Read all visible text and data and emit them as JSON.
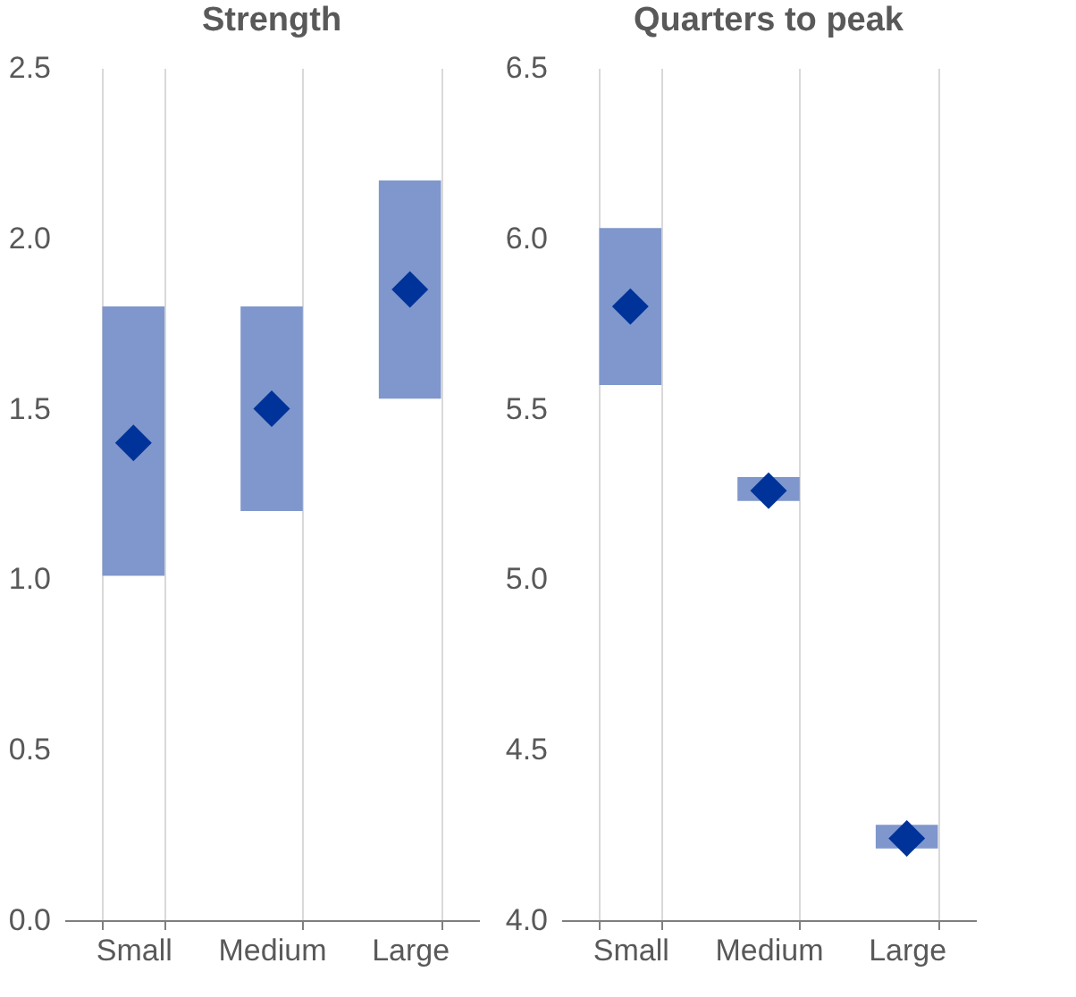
{
  "chart_data": [
    {
      "type": "bar",
      "title": "Strength",
      "categories": [
        "Small",
        "Medium",
        "Large"
      ],
      "marker": "diamond",
      "grid": "x",
      "ylim": [
        0,
        2.5
      ],
      "yticks": [
        {
          "value": 0,
          "label": "0.0"
        },
        0.5,
        {
          "value": 1,
          "label": "1.0"
        },
        1.5,
        {
          "value": 2,
          "label": "2.0"
        },
        2.5
      ],
      "series": [
        {
          "type": "bar",
          "color": "#7f97cc",
          "base": [
            1.01,
            1.2,
            1.53
          ],
          "values": [
            0.79,
            0.6,
            0.64
          ]
        },
        {
          "type": "scatter",
          "color": "#003399",
          "values": [
            1.4,
            1.5,
            1.85
          ]
        }
      ]
    },
    {
      "type": "bar",
      "title": "Quarters to peak",
      "categories": [
        "Small",
        "Medium",
        "Large"
      ],
      "marker": "diamond",
      "grid": "x",
      "ylim": [
        4,
        6.5
      ],
      "yticks": [
        {
          "value": 4,
          "label": "4.0"
        },
        4.5,
        {
          "value": 5,
          "label": "5.0"
        },
        5.5,
        {
          "value": 6,
          "label": "6.0"
        },
        6.5
      ],
      "series": [
        {
          "type": "bar",
          "color": "#7f97cc",
          "base": [
            5.57,
            5.23,
            4.21
          ],
          "values": [
            0.46,
            0.07,
            0.07
          ]
        },
        {
          "type": "scatter",
          "color": "#003399",
          "values": [
            5.8,
            5.26,
            4.24
          ]
        }
      ]
    }
  ]
}
